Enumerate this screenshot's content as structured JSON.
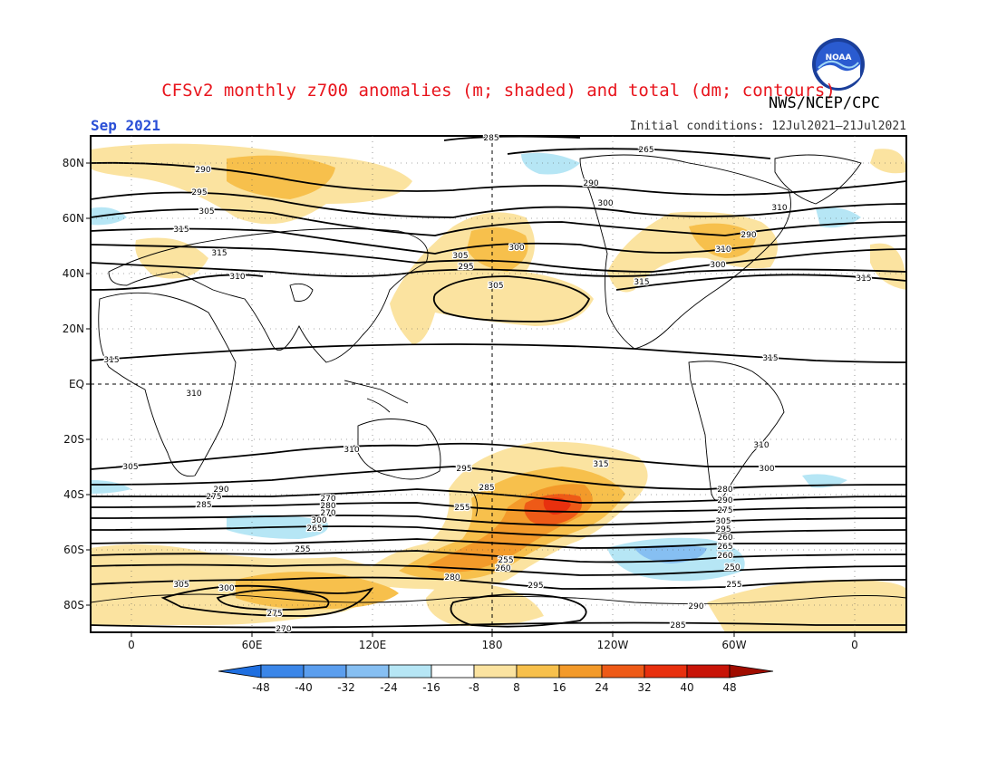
{
  "title": "CFSv2 monthly z700 anomalies (m; shaded) and total (dm; contours)",
  "agency": "NWS/NCEP/CPC",
  "logo_text": "NOAA",
  "period": "Sep 2021",
  "initial_conditions": "Initial conditions: 12Jul2021–21Jul2021",
  "lat_labels": [
    "80N",
    "60N",
    "40N",
    "20N",
    "EQ",
    "20S",
    "40S",
    "60S",
    "80S"
  ],
  "lon_labels": [
    "0",
    "60E",
    "120E",
    "180",
    "120W",
    "60W",
    "0"
  ],
  "colorbar": {
    "labels": [
      "-48",
      "-40",
      "-32",
      "-24",
      "-16",
      "-8",
      "8",
      "16",
      "24",
      "32",
      "40",
      "48"
    ],
    "colors": [
      "#1f6fe0",
      "#3b86e8",
      "#5b9eee",
      "#86bff2",
      "#b6e6f5",
      "#ffffff",
      "#fbe3a0",
      "#f7c04c",
      "#f39a2a",
      "#ee5a17",
      "#e8300e",
      "#c81408",
      "#a00c00"
    ]
  },
  "contour_labels": [
    "285",
    "265",
    "290",
    "290",
    "295",
    "300",
    "305",
    "310",
    "315",
    "300",
    "305",
    "310",
    "315",
    "295",
    "290",
    "300",
    "305",
    "310",
    "315",
    "315",
    "315",
    "315",
    "310",
    "310",
    "310",
    "315",
    "305",
    "300",
    "295",
    "290",
    "285",
    "280",
    "275",
    "270",
    "290",
    "285",
    "280",
    "275",
    "270",
    "305",
    "300",
    "295",
    "265",
    "260",
    "255",
    "255",
    "260",
    "265",
    "260",
    "250",
    "255",
    "255",
    "305",
    "300",
    "295",
    "290",
    "285",
    "280",
    "275",
    "270",
    "265",
    "260",
    "255",
    "315",
    "310",
    "305",
    "295"
  ]
}
